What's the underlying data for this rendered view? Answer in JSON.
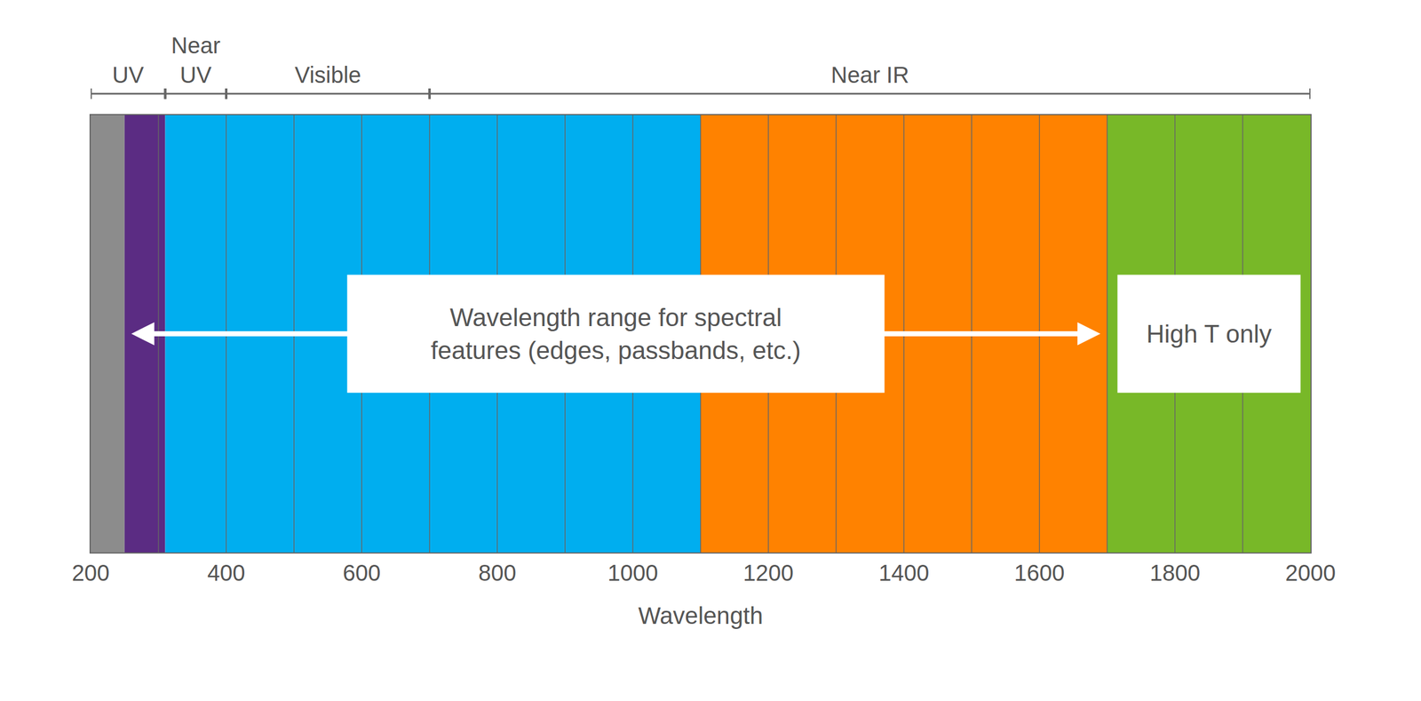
{
  "chart_data": {
    "type": "band",
    "xlabel": "Wavelength",
    "xlim": [
      200,
      2000
    ],
    "xticks": [
      200,
      400,
      600,
      800,
      1000,
      1200,
      1400,
      1600,
      1800,
      2000
    ],
    "bands": [
      {
        "start": 200,
        "end": 250,
        "color": "#8c8c8c"
      },
      {
        "start": 250,
        "end": 310,
        "color": "#5b2c83"
      },
      {
        "start": 310,
        "end": 1100,
        "color": "#00aeef"
      },
      {
        "start": 1100,
        "end": 1700,
        "color": "#ff8200"
      },
      {
        "start": 1700,
        "end": 2000,
        "color": "#78b828"
      }
    ],
    "dividers": [
      300,
      400,
      500,
      600,
      700,
      800,
      900,
      1000,
      1100,
      1200,
      1300,
      1400,
      1500,
      1600,
      1700,
      1800,
      1900
    ],
    "regions": [
      {
        "label": "UV",
        "start": 200,
        "end": 310
      },
      {
        "label": "Near\nUV",
        "start": 310,
        "end": 400
      },
      {
        "label": "Visible",
        "start": 400,
        "end": 700
      },
      {
        "label": "Near IR",
        "start": 700,
        "end": 2000
      }
    ],
    "annotations": [
      {
        "text": "Wavelength range for spectral\nfeatures (edges, passbands, etc.)",
        "start": 260,
        "end": 1690
      },
      {
        "text": "High T only",
        "x": 1850
      }
    ]
  }
}
